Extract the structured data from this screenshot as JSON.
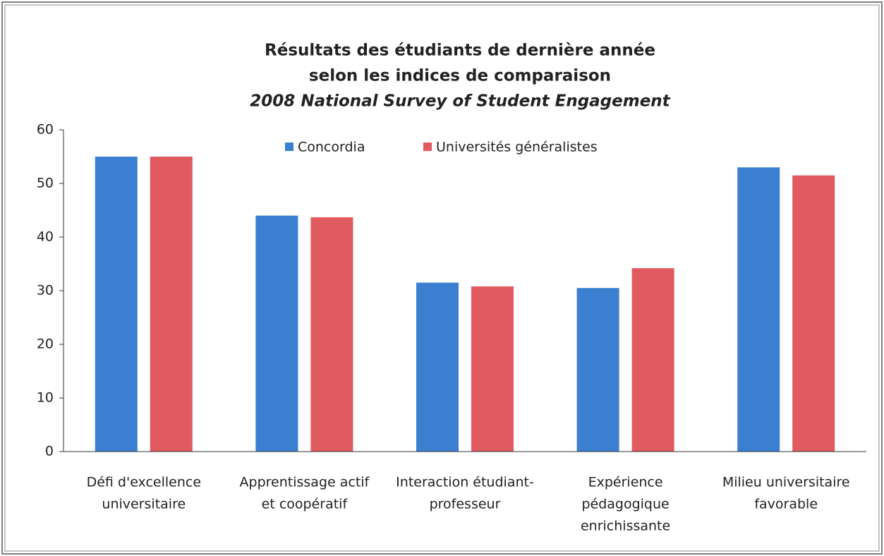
{
  "chart_data": {
    "type": "bar",
    "title": [
      "Résultats des étudiants de dernière année",
      "selon les indices de comparaison"
    ],
    "subtitle": "2008 National Survey of Student Engagement",
    "categories": [
      [
        "Défi d'excellence",
        "universitaire"
      ],
      [
        "Apprentissage actif",
        "et coopératif"
      ],
      [
        "Interaction étudiant-",
        "professeur"
      ],
      [
        "Expérience",
        "pédagogique",
        "enrichissante"
      ],
      [
        "Milieu universitaire",
        "favorable"
      ]
    ],
    "series": [
      {
        "name": "Concordia",
        "color": "#3a7fd0",
        "values": [
          55,
          44,
          31.5,
          30.5,
          53
        ]
      },
      {
        "name": "Universités généralistes",
        "color": "#e05a60",
        "values": [
          55,
          43.7,
          30.8,
          34.2,
          51.5
        ]
      }
    ],
    "ylim": [
      0,
      60
    ],
    "yticks": [
      0,
      10,
      20,
      30,
      40,
      50,
      60
    ],
    "grid": false,
    "legend": "top"
  }
}
